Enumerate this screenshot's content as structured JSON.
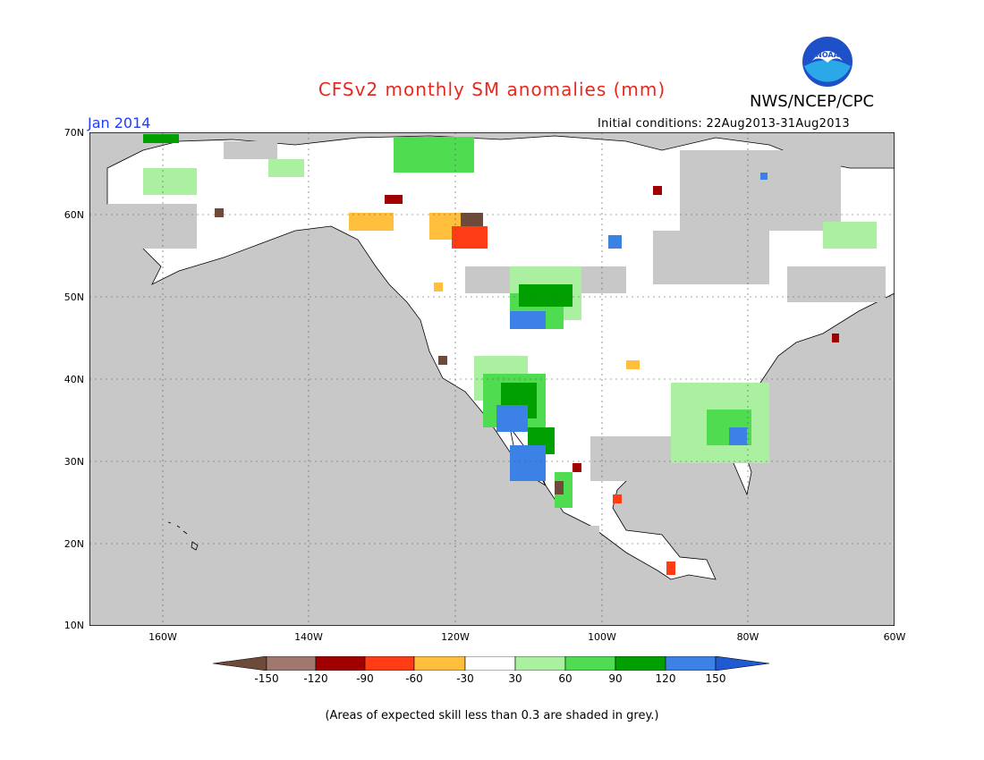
{
  "header": {
    "title": "CFSv2 monthly SM anomalies (mm)",
    "agency": "NWS/NCEP/CPC",
    "month": "Jan 2014",
    "initial_conditions": "Initial conditions: 22Aug2013-31Aug2013",
    "logo_text": "NOAA"
  },
  "map": {
    "lat_labels": [
      "70N",
      "60N",
      "50N",
      "40N",
      "30N",
      "20N",
      "10N"
    ],
    "lon_labels": [
      "160W",
      "140W",
      "120W",
      "100W",
      "80W",
      "60W"
    ],
    "lat_range": [
      10,
      70
    ],
    "lon_range": [
      -170,
      -60
    ],
    "colors": {
      "ocean": "#c8c8c8",
      "no_skill_grey": "#c8c8c8",
      "land_white": "#ffffff",
      "grid": "#555555"
    }
  },
  "colorbar": {
    "labels": [
      "-150",
      "-120",
      "-90",
      "-60",
      "-30",
      "30",
      "60",
      "90",
      "120",
      "150"
    ],
    "colors": [
      "#6e4a3a",
      "#a07870",
      "#a00000",
      "#ff3c14",
      "#ffbe3c",
      "#ffffff",
      "#aaf0a0",
      "#50dc50",
      "#00a000",
      "#3c82e6",
      "#1e5ad2"
    ]
  },
  "footnote": "(Areas of expected skill less than 0.3 are shaded in grey.)"
}
